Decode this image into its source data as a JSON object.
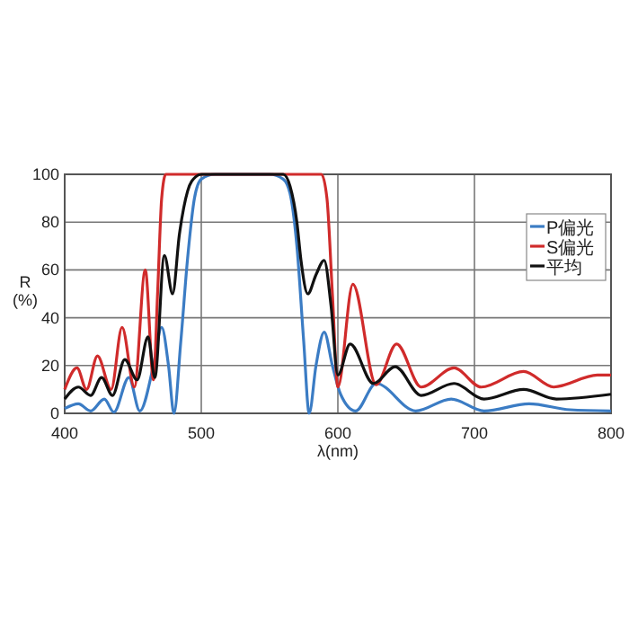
{
  "chart_data": {
    "type": "line",
    "xlabel": "λ(nm)",
    "ylabel": "R\n(%)",
    "xlim": [
      400,
      800
    ],
    "ylim": [
      0,
      100
    ],
    "xticks": [
      400,
      500,
      600,
      700,
      800
    ],
    "yticks": [
      0,
      20,
      40,
      60,
      80,
      100
    ],
    "grid": true,
    "legend": "top right",
    "marker": "none",
    "line_style": "solid",
    "series": [
      {
        "name": "P偏光",
        "color": "#3b7cc4",
        "x": [
          400,
          410,
          419,
          429,
          436,
          447,
          455,
          465,
          471,
          476,
          480,
          485,
          490,
          495,
          500,
          510,
          550,
          560,
          565,
          570,
          575,
          579,
          584,
          590,
          596,
          602,
          613,
          628,
          657,
          683,
          707,
          740,
          770,
          800
        ],
        "values": [
          2,
          4,
          1,
          6,
          0.5,
          15,
          1,
          20,
          36,
          20,
          0,
          30,
          65,
          90,
          98,
          100,
          100,
          98,
          92,
          70,
          30,
          0,
          20,
          34,
          20,
          8,
          1,
          12.5,
          1,
          6,
          1,
          4,
          1.5,
          1
        ]
      },
      {
        "name": "S偏光",
        "color": "#d02b2b",
        "x": [
          400,
          409,
          416,
          424,
          434,
          442,
          451,
          459,
          465,
          468,
          471,
          474,
          480,
          588,
          592,
          596,
          600,
          611,
          628,
          643,
          661,
          685,
          705,
          736,
          758,
          790,
          800
        ],
        "values": [
          10,
          19,
          10,
          24,
          10,
          36,
          11,
          60,
          14,
          50,
          90,
          100,
          100,
          100,
          90,
          50,
          11,
          54,
          12,
          29,
          11,
          19,
          11,
          17.5,
          11,
          16,
          16
        ]
      },
      {
        "name": "平均",
        "color": "#111111",
        "x": [
          400,
          410,
          419,
          427,
          435,
          444,
          453,
          461,
          466,
          473,
          479,
          484,
          490,
          496,
          500,
          560,
          565,
          570,
          573,
          578,
          584,
          590,
          595,
          600,
          609,
          626,
          642,
          661,
          685,
          707,
          736,
          760,
          800
        ],
        "values": [
          6,
          11,
          7.5,
          15,
          7.5,
          22.5,
          14,
          32,
          15,
          66,
          50,
          75,
          93,
          99,
          100,
          100,
          95,
          80,
          64,
          50,
          58,
          64,
          45,
          16,
          29,
          12.5,
          19.5,
          7.5,
          12.5,
          6,
          10,
          6,
          8
        ]
      }
    ]
  }
}
